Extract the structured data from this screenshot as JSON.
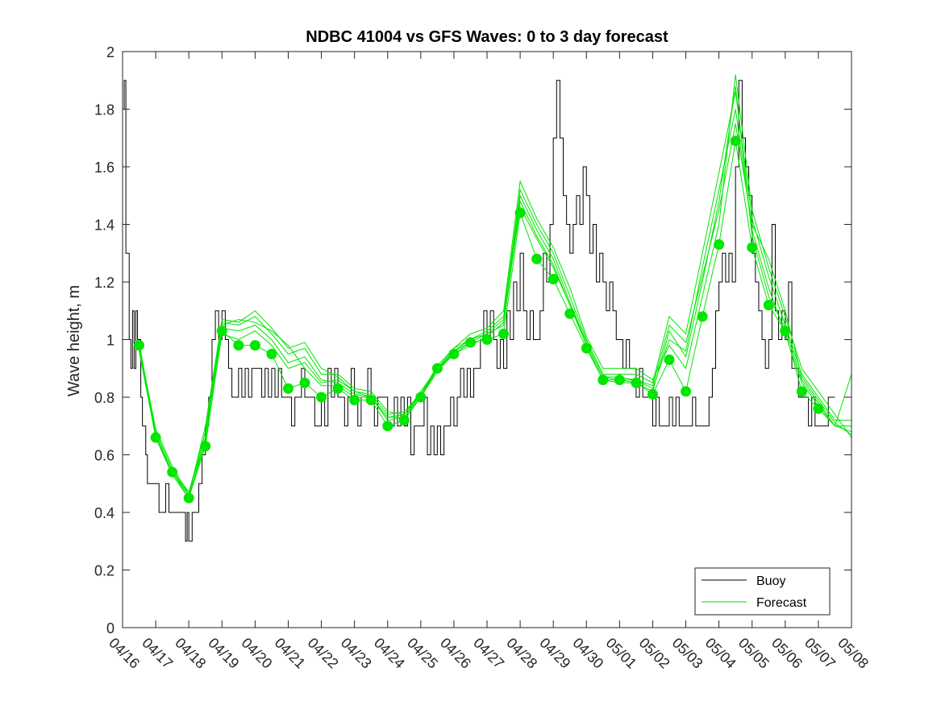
{
  "chart_data": {
    "type": "line",
    "title": "NDBC 41004 vs GFS Waves: 0 to 3 day forecast",
    "xlabel": "",
    "ylabel": "Wave height, m",
    "xlim": [
      "04/16",
      "05/08"
    ],
    "ylim": [
      0,
      2
    ],
    "yticks": [
      0,
      0.2,
      0.4,
      0.6,
      0.8,
      1,
      1.2,
      1.4,
      1.6,
      1.8,
      2
    ],
    "ytick_labels": [
      "0",
      "0.2",
      "0.4",
      "0.6",
      "0.8",
      "1",
      "1.2",
      "1.4",
      "1.6",
      "1.8",
      "2"
    ],
    "xtick_labels": [
      "04/16",
      "04/17",
      "04/18",
      "04/19",
      "04/20",
      "04/21",
      "04/22",
      "04/23",
      "04/24",
      "04/25",
      "04/26",
      "04/27",
      "04/28",
      "04/29",
      "04/30",
      "05/01",
      "05/02",
      "05/03",
      "05/04",
      "05/05",
      "05/06",
      "05/07",
      "05/08"
    ],
    "grid": false,
    "legend_position": "bottom-right",
    "colors": {
      "buoy": "#000000",
      "forecast": "#00e600",
      "axes": "#262626"
    },
    "series": [
      {
        "name": "Buoy",
        "x_days_from_0416": [
          0,
          0.05,
          0.1,
          0.2,
          0.25,
          0.3,
          0.35,
          0.4,
          0.45,
          0.5,
          0.55,
          0.6,
          0.65,
          0.7,
          0.75,
          0.8,
          0.9,
          1.0,
          1.1,
          1.2,
          1.3,
          1.4,
          1.5,
          1.6,
          1.7,
          1.8,
          1.9,
          1.95,
          2.0,
          2.05,
          2.1,
          2.2,
          2.3,
          2.4,
          2.5,
          2.6,
          2.7,
          2.8,
          2.9,
          3.0,
          3.1,
          3.2,
          3.3,
          3.4,
          3.5,
          3.6,
          3.7,
          3.8,
          3.9,
          4.0,
          4.1,
          4.2,
          4.3,
          4.4,
          4.5,
          4.6,
          4.7,
          4.8,
          4.9,
          5.0,
          5.1,
          5.2,
          5.3,
          5.4,
          5.5,
          5.6,
          5.7,
          5.8,
          5.9,
          6.0,
          6.1,
          6.2,
          6.3,
          6.4,
          6.5,
          6.6,
          6.7,
          6.8,
          6.9,
          7.0,
          7.1,
          7.2,
          7.3,
          7.4,
          7.5,
          7.6,
          7.7,
          7.8,
          7.9,
          8.0,
          8.1,
          8.2,
          8.3,
          8.4,
          8.5,
          8.6,
          8.7,
          8.8,
          8.9,
          9.0,
          9.1,
          9.2,
          9.3,
          9.4,
          9.5,
          9.6,
          9.7,
          9.8,
          9.9,
          10.0,
          10.1,
          10.2,
          10.3,
          10.4,
          10.5,
          10.6,
          10.7,
          10.8,
          10.9,
          11.0,
          11.1,
          11.2,
          11.3,
          11.4,
          11.5,
          11.6,
          11.7,
          11.8,
          11.9,
          12.0,
          12.1,
          12.2,
          12.3,
          12.4,
          12.5,
          12.6,
          12.7,
          12.8,
          12.9,
          13.0,
          13.1,
          13.2,
          13.3,
          13.4,
          13.5,
          13.6,
          13.7,
          13.8,
          13.9,
          14.0,
          14.1,
          14.2,
          14.3,
          14.4,
          14.5,
          14.6,
          14.7,
          14.8,
          14.9,
          15.0,
          15.1,
          15.2,
          15.3,
          15.4,
          15.5,
          15.6,
          15.7,
          15.8,
          15.9,
          16.0,
          16.1,
          16.2,
          16.3,
          16.4,
          16.5,
          16.6,
          16.7,
          16.8,
          16.9,
          17.0,
          17.1,
          17.2,
          17.3,
          17.4,
          17.5,
          17.6,
          17.7,
          17.8,
          17.9,
          18.0,
          18.1,
          18.2,
          18.3,
          18.4,
          18.5,
          18.6,
          18.7,
          18.8,
          18.9,
          19.0,
          19.1,
          19.2,
          19.3,
          19.4,
          19.5,
          19.6,
          19.7,
          19.8,
          19.9,
          20.0,
          20.1,
          20.2,
          20.3,
          20.4,
          20.5,
          20.6,
          20.7,
          20.8,
          20.9,
          21.0,
          21.1,
          21.2,
          21.3,
          21.4,
          21.5,
          21.6,
          21.7,
          21.8,
          21.9,
          22.0
        ],
        "values": [
          1.8,
          1.9,
          1.3,
          1.0,
          0.9,
          1.1,
          0.9,
          1.1,
          1.0,
          1.0,
          0.8,
          0.7,
          0.7,
          0.6,
          0.5,
          0.5,
          0.5,
          0.5,
          0.4,
          0.4,
          0.5,
          0.4,
          0.4,
          0.4,
          0.4,
          0.4,
          0.3,
          0.4,
          0.3,
          0.3,
          0.4,
          0.4,
          0.5,
          0.6,
          0.7,
          0.8,
          1.0,
          1.1,
          1.0,
          1.1,
          1.0,
          0.9,
          0.8,
          0.8,
          0.9,
          0.8,
          0.9,
          0.8,
          0.9,
          0.9,
          0.9,
          0.8,
          0.9,
          0.8,
          0.9,
          0.8,
          0.9,
          0.8,
          0.8,
          0.8,
          0.7,
          0.8,
          0.8,
          0.9,
          0.8,
          0.8,
          0.8,
          0.7,
          0.7,
          0.8,
          0.7,
          0.9,
          0.8,
          0.9,
          0.8,
          0.8,
          0.7,
          0.8,
          0.9,
          0.8,
          0.7,
          0.8,
          0.8,
          0.9,
          0.8,
          0.7,
          0.8,
          0.8,
          0.8,
          0.7,
          0.7,
          0.8,
          0.7,
          0.8,
          0.7,
          0.8,
          0.6,
          0.7,
          0.7,
          0.7,
          0.8,
          0.6,
          0.7,
          0.6,
          0.7,
          0.6,
          0.7,
          0.7,
          0.8,
          0.7,
          0.8,
          0.9,
          0.8,
          0.9,
          0.8,
          0.9,
          0.9,
          1.0,
          1.1,
          1.0,
          1.1,
          1.0,
          0.9,
          1.0,
          0.9,
          1.1,
          1.0,
          1.2,
          1.1,
          1.3,
          1.1,
          1.0,
          1.1,
          1.0,
          1.0,
          1.1,
          1.3,
          1.2,
          1.4,
          1.7,
          1.9,
          1.7,
          1.5,
          1.4,
          1.3,
          1.4,
          1.5,
          1.4,
          1.6,
          1.5,
          1.3,
          1.4,
          1.2,
          1.3,
          1.2,
          1.1,
          1.2,
          1.1,
          1.0,
          1.0,
          0.9,
          1.0,
          0.9,
          0.9,
          0.8,
          0.9,
          0.8,
          0.8,
          0.8,
          0.7,
          0.8,
          0.7,
          0.7,
          0.7,
          0.8,
          0.7,
          0.8,
          0.7,
          0.7,
          0.7,
          0.7,
          0.8,
          0.7,
          0.7,
          0.7,
          0.7,
          0.8,
          0.9,
          1.1,
          1.2,
          1.3,
          1.2,
          1.3,
          1.2,
          1.6,
          1.9,
          1.7,
          1.6,
          1.5,
          1.3,
          1.2,
          1.1,
          1.0,
          0.9,
          1.0,
          1.4,
          1.1,
          1.0,
          1.1,
          1.0,
          1.2,
          0.9,
          0.9,
          0.8,
          0.8,
          0.8,
          0.7,
          0.8,
          0.7,
          0.7,
          0.7,
          0.7,
          0.8,
          0.8
        ]
      },
      {
        "name": "Forecast",
        "x_days_from_0416": [
          0.5,
          1.0,
          1.5,
          2.0,
          2.5,
          3.0,
          3.5,
          4.0,
          4.5,
          5.0,
          5.5,
          6.0,
          6.5,
          7.0,
          7.5,
          8.0,
          8.5,
          9.0,
          9.5,
          10.0,
          10.5,
          11.0,
          11.5,
          12.0,
          12.5,
          13.0,
          13.5,
          14.0,
          14.5,
          15.0,
          15.5,
          16.0,
          16.5,
          17.0,
          17.5,
          18.0,
          18.5,
          19.0,
          19.5,
          20.0,
          20.5,
          21.0,
          21.5,
          22.0
        ],
        "values": [
          0.98,
          0.66,
          0.54,
          0.45,
          0.63,
          1.03,
          0.98,
          0.98,
          0.95,
          0.83,
          0.85,
          0.8,
          0.83,
          0.79,
          0.79,
          0.7,
          0.72,
          0.8,
          0.9,
          0.95,
          0.99,
          1.0,
          1.02,
          1.44,
          1.28,
          1.21,
          1.09,
          0.97,
          0.86,
          0.86,
          0.85,
          0.81,
          0.93,
          0.82,
          1.08,
          1.33,
          1.69,
          1.32,
          1.12,
          1.03,
          0.82,
          0.76,
          0.7,
          0.88
        ],
        "markers": {
          "x_days_from_0416": [
            0.5,
            1.0,
            1.5,
            2.0,
            2.5,
            3.0,
            3.5,
            4.0,
            4.5,
            5.0,
            5.5,
            6.0,
            6.5,
            7.0,
            7.5,
            8.0,
            8.5,
            9.0,
            9.5,
            10.0,
            10.5,
            11.0,
            11.5,
            12.0,
            12.5,
            13.0,
            13.5,
            14.0,
            14.5,
            15.0,
            15.5,
            16.0,
            16.5,
            17.0,
            17.5,
            18.0,
            18.5,
            19.0,
            19.5,
            20.0,
            20.5,
            21.0
          ],
          "values": [
            0.98,
            0.66,
            0.54,
            0.45,
            0.63,
            1.03,
            0.98,
            0.98,
            0.95,
            0.83,
            0.85,
            0.8,
            0.83,
            0.79,
            0.79,
            0.7,
            0.72,
            0.8,
            0.9,
            0.95,
            0.99,
            1.0,
            1.02,
            1.44,
            1.28,
            1.21,
            1.09,
            0.97,
            0.86,
            0.86,
            0.85,
            0.81,
            0.93,
            0.82,
            1.08,
            1.33,
            1.69,
            1.32,
            1.12,
            1.03,
            0.82,
            0.76
          ]
        }
      }
    ],
    "forecast_runs": [
      [
        0.98,
        0.68,
        0.55,
        0.47,
        0.68,
        1.06,
        1.05,
        1.08,
        1.02,
        0.95,
        0.97,
        0.88,
        0.88,
        0.83,
        0.82,
        0.75,
        0.74,
        0.82,
        0.9,
        0.97,
        1.0,
        1.03,
        1.08,
        1.52,
        1.4,
        1.3,
        1.15,
        1.0,
        0.88,
        0.88,
        0.88,
        0.85,
        1.08,
        1.02,
        1.3,
        1.58,
        1.86,
        1.42,
        1.22,
        1.05,
        0.88,
        0.8,
        0.72,
        0.72
      ],
      [
        0.97,
        0.67,
        0.54,
        0.46,
        0.7,
        1.07,
        1.06,
        1.1,
        1.04,
        0.97,
        0.99,
        0.9,
        0.87,
        0.82,
        0.8,
        0.73,
        0.73,
        0.81,
        0.89,
        0.95,
        0.98,
        1.01,
        1.06,
        1.5,
        1.38,
        1.28,
        1.13,
        0.99,
        0.87,
        0.86,
        0.86,
        0.83,
        1.0,
        0.96,
        1.25,
        1.52,
        1.8,
        1.38,
        1.18,
        1.02,
        0.85,
        0.77,
        0.7,
        0.7
      ],
      [
        0.96,
        0.66,
        0.53,
        0.45,
        0.66,
        1.04,
        1.03,
        1.05,
        1.0,
        0.92,
        0.94,
        0.86,
        0.85,
        0.81,
        0.8,
        0.72,
        0.73,
        0.8,
        0.89,
        0.96,
        0.99,
        1.02,
        1.05,
        1.48,
        1.36,
        1.26,
        1.12,
        0.98,
        0.86,
        0.85,
        0.85,
        0.82,
        1.03,
        0.94,
        1.2,
        1.48,
        1.88,
        1.36,
        1.15,
        1.04,
        0.86,
        0.78,
        0.7,
        0.68
      ],
      [
        0.98,
        0.69,
        0.56,
        0.46,
        0.64,
        1.02,
        1.0,
        1.03,
        0.98,
        0.9,
        0.92,
        0.85,
        0.86,
        0.82,
        0.81,
        0.74,
        0.75,
        0.81,
        0.91,
        0.97,
        1.02,
        1.04,
        1.1,
        1.55,
        1.42,
        1.32,
        1.18,
        1.01,
        0.9,
        0.9,
        0.9,
        0.86,
        0.98,
        0.9,
        1.15,
        1.4,
        1.92,
        1.45,
        1.25,
        1.08,
        0.9,
        0.82,
        0.74,
        0.66
      ],
      [
        0.99,
        0.67,
        0.54,
        0.47,
        0.66,
        1.05,
        1.07,
        1.06,
        1.03,
        0.98,
        0.9,
        0.84,
        0.84,
        0.8,
        0.8,
        0.73,
        0.74,
        0.81,
        0.9,
        0.96,
        1.0,
        1.02,
        1.07,
        1.46,
        1.35,
        1.25,
        1.12,
        0.99,
        0.87,
        0.87,
        0.86,
        0.84,
        1.05,
        0.99,
        1.22,
        1.45,
        1.75,
        1.4,
        1.28,
        1.1,
        0.87,
        0.79,
        0.71,
        0.67
      ]
    ]
  }
}
